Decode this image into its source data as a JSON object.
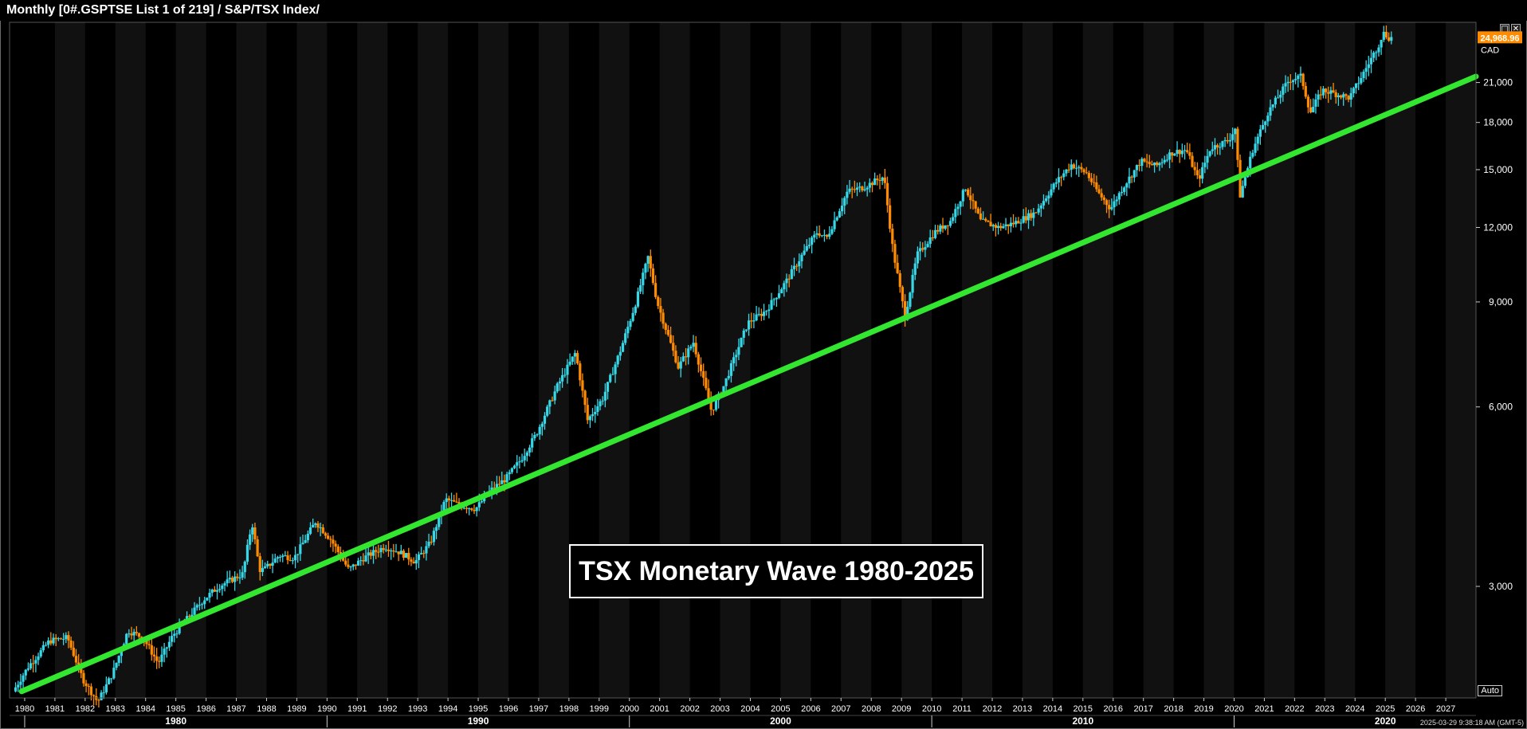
{
  "window": {
    "title": "Monthly [0#.GSPTSE List 1 of 219] / S&P/TSX Index/",
    "timestamp": "2025-03-29 9:38:18 AM  (GMT-5)",
    "auto_label": "Auto",
    "restore_icon": "restore-icon",
    "close_icon": "close-icon"
  },
  "chart_data": {
    "type": "candlestick",
    "title": "",
    "xlabel": "",
    "ylabel": "",
    "y_scale": "log",
    "ylim": [
      1950,
      26500
    ],
    "xlim": [
      1979.5,
      2028.0
    ],
    "grid": false,
    "alternating_year_bands": true,
    "currency": "CAD",
    "last_price": "24,968.96",
    "last_price_color": "#ff8c00",
    "up_color": "#36d8e8",
    "down_color": "#ff8c00",
    "y_ticks": [
      {
        "value": 3000,
        "label": "3,000"
      },
      {
        "value": 6000,
        "label": "6,000"
      },
      {
        "value": 9000,
        "label": "9,000"
      },
      {
        "value": 12000,
        "label": "12,000"
      },
      {
        "value": 15000,
        "label": "15,000"
      },
      {
        "value": 18000,
        "label": "18,000"
      },
      {
        "value": 21000,
        "label": "21,000"
      }
    ],
    "x_year_ticks": [
      "1980",
      "1981",
      "1982",
      "1983",
      "1984",
      "1985",
      "1986",
      "1987",
      "1988",
      "1989",
      "1990",
      "1991",
      "1992",
      "1993",
      "1994",
      "1995",
      "1996",
      "1997",
      "1998",
      "1999",
      "2000",
      "2001",
      "2002",
      "2003",
      "2004",
      "2005",
      "2006",
      "2007",
      "2008",
      "2009",
      "2010",
      "2011",
      "2012",
      "2013",
      "2014",
      "2015",
      "2016",
      "2017",
      "2018",
      "2019",
      "2020",
      "2021",
      "2022",
      "2023",
      "2024",
      "2025",
      "2026",
      "2027"
    ],
    "x_decade_ticks": [
      "1980",
      "1990",
      "2000",
      "2010",
      "2020"
    ],
    "price_path": [
      [
        1979.7,
        2000
      ],
      [
        1980.2,
        2200
      ],
      [
        1980.9,
        2430
      ],
      [
        1981.5,
        2460
      ],
      [
        1982.0,
        2100
      ],
      [
        1982.5,
        1920
      ],
      [
        1983.0,
        2150
      ],
      [
        1983.5,
        2530
      ],
      [
        1984.0,
        2460
      ],
      [
        1984.5,
        2230
      ],
      [
        1985.0,
        2490
      ],
      [
        1986.0,
        2850
      ],
      [
        1986.5,
        3000
      ],
      [
        1987.3,
        3150
      ],
      [
        1987.6,
        3850
      ],
      [
        1987.85,
        3200
      ],
      [
        1988.0,
        3200
      ],
      [
        1988.5,
        3380
      ],
      [
        1989.0,
        3350
      ],
      [
        1989.7,
        3850
      ],
      [
        1990.2,
        3600
      ],
      [
        1990.8,
        3200
      ],
      [
        1991.3,
        3350
      ],
      [
        1992.0,
        3500
      ],
      [
        1992.5,
        3420
      ],
      [
        1993.0,
        3300
      ],
      [
        1993.5,
        3550
      ],
      [
        1994.0,
        4200
      ],
      [
        1994.5,
        4100
      ],
      [
        1995.0,
        4050
      ],
      [
        1995.5,
        4350
      ],
      [
        1996.0,
        4550
      ],
      [
        1996.5,
        4900
      ],
      [
        1997.0,
        5400
      ],
      [
        1997.7,
        6500
      ],
      [
        1998.3,
        7400
      ],
      [
        1998.7,
        5700
      ],
      [
        1999.2,
        6200
      ],
      [
        1999.8,
        7500
      ],
      [
        2000.3,
        9000
      ],
      [
        2000.7,
        10700
      ],
      [
        2001.0,
        9000
      ],
      [
        2001.7,
        7000
      ],
      [
        2002.2,
        7700
      ],
      [
        2002.8,
        5900
      ],
      [
        2003.2,
        6500
      ],
      [
        2004.0,
        8300
      ],
      [
        2004.6,
        8700
      ],
      [
        2005.3,
        9800
      ],
      [
        2005.8,
        10800
      ],
      [
        2006.3,
        11800
      ],
      [
        2006.6,
        11500
      ],
      [
        2007.3,
        13800
      ],
      [
        2007.8,
        14000
      ],
      [
        2008.5,
        14600
      ],
      [
        2008.8,
        11000
      ],
      [
        2009.2,
        8500
      ],
      [
        2009.6,
        10800
      ],
      [
        2010.2,
        11800
      ],
      [
        2010.7,
        12300
      ],
      [
        2011.2,
        14000
      ],
      [
        2011.7,
        12300
      ],
      [
        2012.3,
        12000
      ],
      [
        2012.8,
        12200
      ],
      [
        2013.5,
        12700
      ],
      [
        2014.2,
        14300
      ],
      [
        2014.7,
        15300
      ],
      [
        2015.2,
        14800
      ],
      [
        2015.6,
        13700
      ],
      [
        2016.0,
        12900
      ],
      [
        2016.4,
        14000
      ],
      [
        2017.0,
        15500
      ],
      [
        2017.5,
        15200
      ],
      [
        2018.0,
        16000
      ],
      [
        2018.5,
        16200
      ],
      [
        2018.9,
        14400
      ],
      [
        2019.3,
        16300
      ],
      [
        2019.9,
        16800
      ],
      [
        2020.15,
        17700
      ],
      [
        2020.25,
        13400
      ],
      [
        2020.7,
        16200
      ],
      [
        2021.2,
        18700
      ],
      [
        2021.9,
        21200
      ],
      [
        2022.3,
        21500
      ],
      [
        2022.6,
        18700
      ],
      [
        2023.0,
        20400
      ],
      [
        2023.6,
        20000
      ],
      [
        2023.9,
        19800
      ],
      [
        2024.3,
        21500
      ],
      [
        2024.9,
        24500
      ],
      [
        2025.0,
        25500
      ],
      [
        2025.2,
        24968.96
      ]
    ],
    "trendline": {
      "color": "#33e630",
      "from": [
        1979.9,
        2000
      ],
      "to": [
        2028.0,
        21500
      ]
    },
    "annotation": "TSX Monetary Wave 1980-2025"
  }
}
